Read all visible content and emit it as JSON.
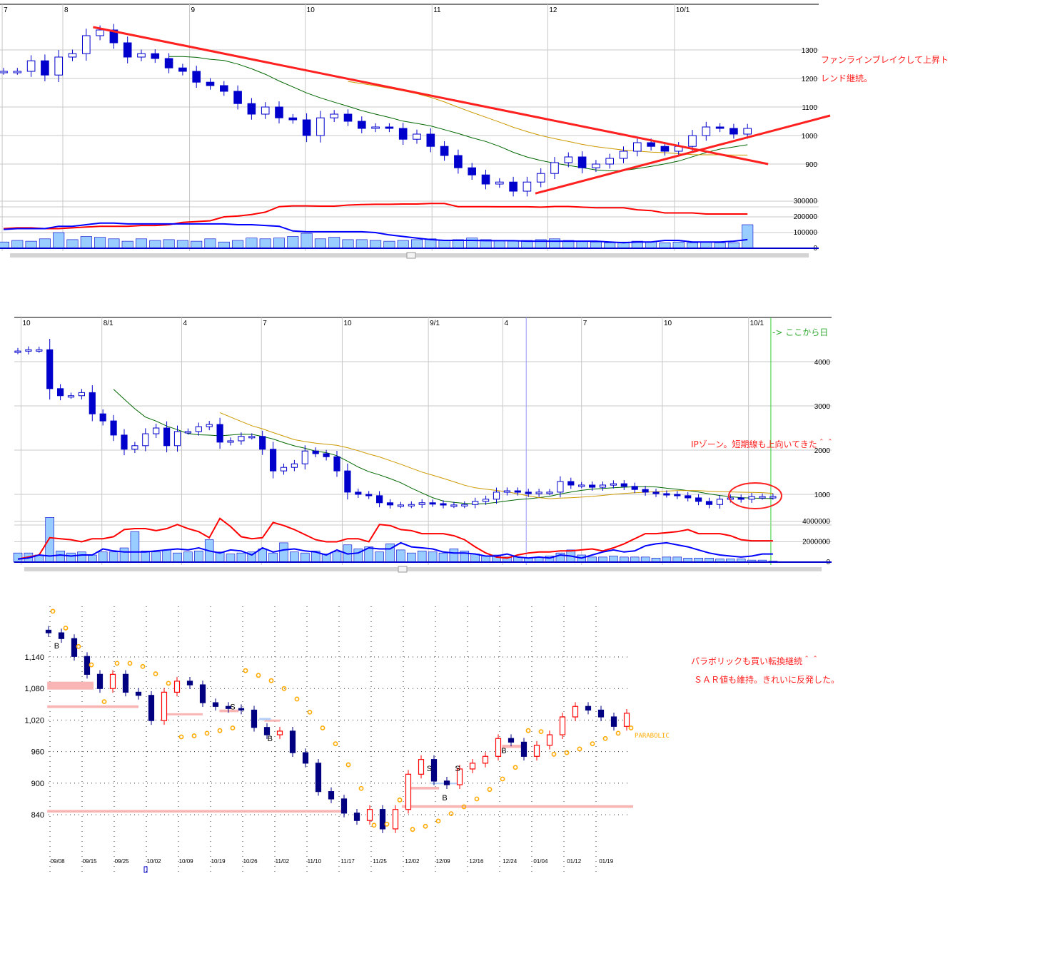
{
  "colors": {
    "candle_down": "#0000cc",
    "candle_up_fill": "#ffffff",
    "candle_up_stroke": "#0000cc",
    "ma_short": "#006600",
    "ma_long": "#cc9900",
    "trendline": "#ff2020",
    "volume_bar": "#99ccff",
    "volume_bar_stroke": "#0000cc",
    "vol_red_line": "#ff0000",
    "vol_blue_line": "#0000ff",
    "grid": "#c8c8c8",
    "annotation_red": "#ff2020",
    "annotation_green": "#33aa33",
    "sar": "#ffaa00",
    "c3_up": "#ff0000",
    "c3_down": "#000080",
    "band_pink": "#f9b4b4",
    "band_blue": "#b4d0f8"
  },
  "chart_data": [
    {
      "type": "candlestick",
      "y_ticks": [
        "1300",
        "1200",
        "1100",
        "1000",
        "900"
      ],
      "y_tick_values": [
        1300,
        1200,
        1100,
        1000,
        900
      ],
      "x_ticks": [
        {
          "label": "7",
          "index": -0.1
        },
        {
          "label": "8",
          "index": 4.3
        },
        {
          "label": "9",
          "index": 13.5
        },
        {
          "label": "10",
          "index": 21.9
        },
        {
          "label": "11",
          "index": 31.1
        },
        {
          "label": "12",
          "index": 39.5
        },
        {
          "label": "10/1",
          "index": 48.7
        }
      ],
      "closes": [
        1225,
        1225,
        1262,
        1212,
        1275,
        1287,
        1350,
        1370,
        1325,
        1275,
        1287,
        1270,
        1237,
        1225,
        1187,
        1175,
        1155,
        1112,
        1075,
        1100,
        1062,
        1055,
        1000,
        1062,
        1075,
        1050,
        1025,
        1030,
        1025,
        987,
        1005,
        962,
        930,
        887,
        862,
        830,
        837,
        805,
        837,
        867,
        905,
        925,
        887,
        900,
        920,
        945,
        975,
        962,
        945,
        962,
        1000,
        1030,
        1025,
        1005,
        1025
      ],
      "moving_averages": [
        {
          "period": 13,
          "color": "ma_short"
        },
        {
          "period": 26,
          "color": "ma_long"
        }
      ],
      "trendlines": [
        {
          "from": {
            "index": 6.5,
            "price": 1380
          },
          "to": {
            "index": 55.5,
            "price": 900
          }
        },
        {
          "from": {
            "index": 38.6,
            "price": 797
          },
          "to": {
            "index": 60,
            "price": 1070
          }
        }
      ],
      "volume_ticks": [
        "300000",
        "200000",
        "100000",
        "0"
      ],
      "volume_tick_values": [
        300000,
        200000,
        100000,
        0
      ],
      "volume": [
        40000,
        50000,
        45000,
        60000,
        100000,
        55000,
        75000,
        70000,
        60000,
        45000,
        60000,
        50000,
        55000,
        50000,
        45000,
        60000,
        40000,
        50000,
        65000,
        60000,
        65000,
        75000,
        95000,
        60000,
        70000,
        55000,
        55000,
        50000,
        45000,
        50000,
        55000,
        60000,
        50000,
        55000,
        65000,
        55000,
        50000,
        45000,
        50000,
        55000,
        60000,
        50000,
        45000,
        40000,
        35000,
        40000,
        45000,
        40000,
        35000,
        40000,
        35000,
        40000,
        35000,
        35000,
        150000
      ],
      "volume_red_line": [
        125000,
        130000,
        130000,
        125000,
        125000,
        130000,
        135000,
        140000,
        140000,
        140000,
        145000,
        145000,
        150000,
        165000,
        170000,
        175000,
        200000,
        205000,
        215000,
        230000,
        265000,
        270000,
        270000,
        268000,
        268000,
        275000,
        278000,
        280000,
        280000,
        282000,
        282000,
        285000,
        285000,
        265000,
        265000,
        265000,
        264000,
        264000,
        264000,
        262000,
        266000,
        266000,
        262000,
        258000,
        258000,
        258000,
        245000,
        240000,
        225000,
        225000,
        225000,
        218000,
        218000,
        218000,
        218000
      ],
      "volume_blue_line": [
        120000,
        125000,
        125000,
        125000,
        140000,
        140000,
        150000,
        160000,
        160000,
        155000,
        155000,
        155000,
        155000,
        155000,
        155000,
        155000,
        155000,
        150000,
        150000,
        145000,
        140000,
        110000,
        105000,
        105000,
        105000,
        105000,
        105000,
        100000,
        85000,
        75000,
        65000,
        55000,
        50000,
        50000,
        50000,
        48000,
        48000,
        48000,
        45000,
        45000,
        45000,
        45000,
        45000,
        45000,
        40000,
        35000,
        40000,
        40000,
        50000,
        50000,
        40000,
        40000,
        40000,
        45000,
        55000
      ],
      "annotations": [
        "ファンラインブレイクして上昇ト",
        "レンド継続。"
      ]
    },
    {
      "type": "candlestick",
      "y_ticks": [
        "4000",
        "3000",
        "2000",
        "1000"
      ],
      "y_tick_values": [
        4000,
        3000,
        2000,
        1000
      ],
      "x_ticks": [
        {
          "label": "10",
          "index": 0.3
        },
        {
          "label": "8/1",
          "index": 7.9
        },
        {
          "label": "4",
          "index": 15.4
        },
        {
          "label": "7",
          "index": 22.9
        },
        {
          "label": "10",
          "index": 30.5
        },
        {
          "label": "9/1",
          "index": 38.6
        },
        {
          "label": "4",
          "index": 45.6
        },
        {
          "label": "7",
          "index": 53
        },
        {
          "label": "10",
          "index": 60.6
        },
        {
          "label": "10/1",
          "index": 68.7
        }
      ],
      "marker_lines": [
        {
          "index": 47.8,
          "color": "#9999ff"
        },
        {
          "index": 70.8,
          "color": "#33cc33"
        }
      ],
      "closes": [
        4240,
        4270,
        4270,
        3390,
        3230,
        3230,
        3300,
        2820,
        2660,
        2340,
        2020,
        2100,
        2370,
        2500,
        2100,
        2420,
        2420,
        2530,
        2580,
        2180,
        2210,
        2310,
        2310,
        2020,
        1530,
        1610,
        1690,
        1980,
        1920,
        1850,
        1530,
        1050,
        1000,
        970,
        810,
        760,
        760,
        770,
        810,
        790,
        760,
        760,
        770,
        840,
        890,
        1050,
        1080,
        1050,
        1016,
        1050,
        1050,
        1290,
        1210,
        1210,
        1160,
        1210,
        1240,
        1180,
        1110,
        1050,
        1016,
        1000,
        970,
        920,
        840,
        770,
        890,
        920,
        890,
        950,
        950,
        950
      ],
      "moving_averages": [
        {
          "period": 10,
          "color": "ma_short"
        },
        {
          "period": 20,
          "color": "ma_long"
        }
      ],
      "volume_ticks": [
        "4000000",
        "2000000",
        "0"
      ],
      "volume_tick_values": [
        4000000,
        2000000,
        0
      ],
      "volume": [
        900000,
        900000,
        700000,
        4400000,
        1100000,
        900000,
        1000000,
        700000,
        1000000,
        1000000,
        1400000,
        3000000,
        1100000,
        1000000,
        1200000,
        900000,
        1000000,
        1100000,
        2200000,
        1000000,
        800000,
        900000,
        1000000,
        1300000,
        900000,
        1900000,
        1000000,
        900000,
        1100000,
        800000,
        1000000,
        1700000,
        1300000,
        1500000,
        1000000,
        1800000,
        1200000,
        900000,
        1100000,
        1000000,
        900000,
        1300000,
        1100000,
        800000,
        600000,
        700000,
        500000,
        500000,
        400000,
        500000,
        600000,
        900000,
        1200000,
        700000,
        500000,
        500000,
        600000,
        500000,
        500000,
        500000,
        400000,
        500000,
        500000,
        400000,
        400000,
        400000,
        300000,
        300000,
        300000,
        200000,
        200000,
        100000
      ],
      "volume_red_line": [
        300000,
        500000,
        700000,
        2400000,
        2300000,
        2200000,
        2000000,
        2300000,
        2300000,
        2500000,
        3200000,
        3300000,
        3300000,
        3100000,
        3300000,
        3700000,
        3300000,
        3000000,
        2400000,
        4300000,
        3500000,
        2500000,
        2300000,
        2400000,
        3900000,
        3600000,
        3200000,
        2700000,
        2200000,
        2000000,
        2000000,
        2300000,
        2300000,
        2000000,
        3700000,
        3600000,
        3200000,
        3100000,
        2800000,
        2800000,
        2800000,
        2600000,
        2200000,
        1500000,
        900000,
        500000,
        400000,
        700000,
        900000,
        1000000,
        1000000,
        1100000,
        1100000,
        1200000,
        1300000,
        1100000,
        1400000,
        1800000,
        2300000,
        2800000,
        2800000,
        2900000,
        3000000,
        3200000,
        2800000,
        2800000,
        2800000,
        2600000,
        2200000,
        2100000,
        2100000,
        2100000
      ],
      "volume_blue_line": [
        300000,
        400000,
        700000,
        600000,
        700000,
        600000,
        700000,
        700000,
        1300000,
        1100000,
        1000000,
        1000000,
        1000000,
        1100000,
        1200000,
        1300000,
        1200000,
        1400000,
        1100000,
        900000,
        1200000,
        1100000,
        700000,
        1400000,
        1000000,
        1200000,
        1300000,
        1100000,
        1000000,
        700000,
        1200000,
        800000,
        900000,
        1400000,
        1300000,
        1300000,
        1900000,
        1500000,
        1400000,
        1300000,
        1000000,
        900000,
        900000,
        800000,
        600000,
        600000,
        800000,
        500000,
        400000,
        500000,
        400000,
        700000,
        600000,
        400000,
        700000,
        1000000,
        1200000,
        1000000,
        1100000,
        1600000,
        1800000,
        1900000,
        1700000,
        1500000,
        1200000,
        900000,
        700000,
        600000,
        500000,
        600000,
        800000,
        800000
      ],
      "annotations": [
        "-> ここから日",
        "IPゾーン。短期線も上向いてきた＾＾"
      ]
    },
    {
      "type": "candlestick",
      "indicator": "PARABOLIC",
      "y_ticks": [
        "1,140",
        "1,080",
        "1,020",
        "960",
        "900",
        "840"
      ],
      "y_tick_values": [
        1140,
        1080,
        1020,
        960,
        900,
        840
      ],
      "x_ticks": [
        {
          "label": "09/08",
          "index": 0.7
        },
        {
          "label": "09/15",
          "index": 3.2
        },
        {
          "label": "09/25",
          "index": 5.7
        },
        {
          "label": "10/02",
          "index": 8.2
        },
        {
          "label": "10/09",
          "index": 10.7
        },
        {
          "label": "10/19",
          "index": 13.2
        },
        {
          "label": "10/26",
          "index": 15.7
        },
        {
          "label": "11/02",
          "index": 18.2
        },
        {
          "label": "11/10",
          "index": 20.7
        },
        {
          "label": "11/17",
          "index": 23.3
        },
        {
          "label": "11/25",
          "index": 25.8
        },
        {
          "label": "12/02",
          "index": 28.3
        },
        {
          "label": "12/09",
          "index": 30.7
        },
        {
          "label": "12/16",
          "index": 33.3
        },
        {
          "label": "12/24",
          "index": 35.9
        },
        {
          "label": "01/04",
          "index": 38.3
        },
        {
          "label": "01/12",
          "index": 40.9
        },
        {
          "label": "01/19",
          "index": 43.4
        }
      ],
      "closes": [
        1186,
        1175,
        1141,
        1107,
        1080,
        1107,
        1073,
        1067,
        1019,
        1073,
        1094,
        1087,
        1053,
        1046,
        1042,
        1039,
        1006,
        992,
        999,
        958,
        938,
        884,
        870,
        843,
        829,
        850,
        813,
        850,
        917,
        945,
        904,
        897,
        927,
        938,
        951,
        985,
        978,
        951,
        972,
        992,
        1026,
        1046,
        1039,
        1026,
        1008,
        1033
      ],
      "sar": [
        1227,
        1195,
        1160,
        1125,
        1055,
        1128,
        1128,
        1122,
        1108,
        1090,
        988,
        990,
        995,
        1000,
        1005,
        1114,
        1105,
        1095,
        1080,
        1060,
        1035,
        1005,
        975,
        935,
        890,
        820,
        822,
        868,
        812,
        818,
        828,
        842,
        855,
        870,
        888,
        908,
        930,
        1000,
        998,
        955,
        958,
        965,
        975,
        985,
        995,
        1005
      ],
      "signals": [
        {
          "label": "B",
          "index": 0.6,
          "price": 1162
        },
        {
          "label": "S",
          "index": 14.3,
          "price": 1046
        },
        {
          "label": "B",
          "index": 17.2,
          "price": 985
        },
        {
          "label": "S",
          "index": 29.6,
          "price": 928
        },
        {
          "label": "B",
          "index": 30.8,
          "price": 873
        },
        {
          "label": "S",
          "index": 31.8,
          "price": 928
        },
        {
          "label": "B",
          "index": 35.4,
          "price": 962
        }
      ],
      "bands": [
        {
          "from": -0.1,
          "to": 3.5,
          "low": 1078,
          "high": 1093,
          "color": "band_pink"
        },
        {
          "from": -0.1,
          "to": 7,
          "low": 1043,
          "high": 1048,
          "color": "band_pink"
        },
        {
          "from": 8.8,
          "to": 12,
          "low": 1029,
          "high": 1033,
          "color": "band_pink"
        },
        {
          "from": 13.3,
          "to": 14.8,
          "low": 1035,
          "high": 1040,
          "color": "band_pink"
        },
        {
          "from": 16.8,
          "to": 18,
          "low": 1017,
          "high": 1021,
          "color": "band_pink"
        },
        {
          "from": -0.1,
          "to": 22.8,
          "low": 844,
          "high": 849,
          "color": "band_pink"
        },
        {
          "from": 27.5,
          "to": 45.5,
          "low": 853,
          "high": 858,
          "color": "band_pink"
        },
        {
          "from": 28,
          "to": 30.4,
          "low": 888,
          "high": 893,
          "color": "band_pink"
        },
        {
          "from": 35.3,
          "to": 37,
          "low": 967,
          "high": 973,
          "color": "band_pink"
        },
        {
          "from": 29.8,
          "to": 32,
          "low": 898,
          "high": 901,
          "color": "band_blue"
        },
        {
          "from": 16.4,
          "to": 17.3,
          "low": 1020,
          "high": 1024,
          "color": "band_blue"
        }
      ],
      "annotations": [
        "パラボリックも買い転換継続＾＾",
        "ＳＡＲ値も維持。きれいに反発した。"
      ]
    }
  ]
}
